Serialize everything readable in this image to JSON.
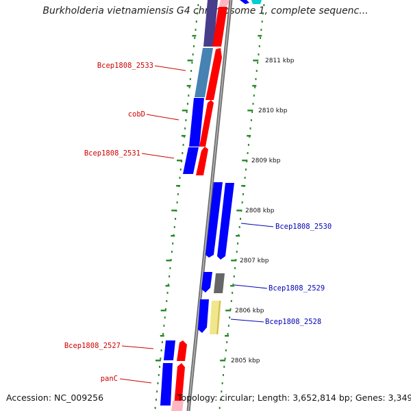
{
  "title": "Burkholderia vietnamiensis G4 chromosome 1, complete sequenc...",
  "footer": {
    "accession": "Accession: NC_009256",
    "topology": "Topology: circular; Length: 3,652,814 bp; Genes: 3,349"
  },
  "colors": {
    "backbone": "#808080",
    "tick": "#2e8b2e",
    "label_red": "#cc0000",
    "label_blue": "#0000b4",
    "cds_forward": "#ff0000",
    "cds_reverse": "#0000ff",
    "gene_steel": "#4682b4",
    "gene_slate": "#483d8b",
    "gene_pink": "#ffb6c1",
    "gene_gray": "#666666",
    "gene_khaki": "#f0e68c",
    "gene_cyan": "#00ced1"
  },
  "scale": {
    "unit": "kbp",
    "labels": [
      "2811 kbp",
      "2810 kbp",
      "2809 kbp",
      "2808 kbp",
      "2807 kbp",
      "2806 kbp",
      "2805 kbp"
    ]
  },
  "genes": [
    {
      "id": "Bcep1808_2533",
      "label": "Bcep1808_2533",
      "side": "left"
    },
    {
      "id": "cobD",
      "label": "cobD",
      "side": "left"
    },
    {
      "id": "Bcep1808_2531",
      "label": "Bcep1808_2531",
      "side": "left"
    },
    {
      "id": "Bcep1808_2530",
      "label": "Bcep1808_2530",
      "side": "right"
    },
    {
      "id": "Bcep1808_2529",
      "label": "Bcep1808_2529",
      "side": "right"
    },
    {
      "id": "Bcep1808_2528",
      "label": "Bcep1808_2528",
      "side": "right"
    },
    {
      "id": "Bcep1808_2527",
      "label": "Bcep1808_2527",
      "side": "left"
    },
    {
      "id": "panC",
      "label": "panC",
      "side": "left"
    }
  ]
}
